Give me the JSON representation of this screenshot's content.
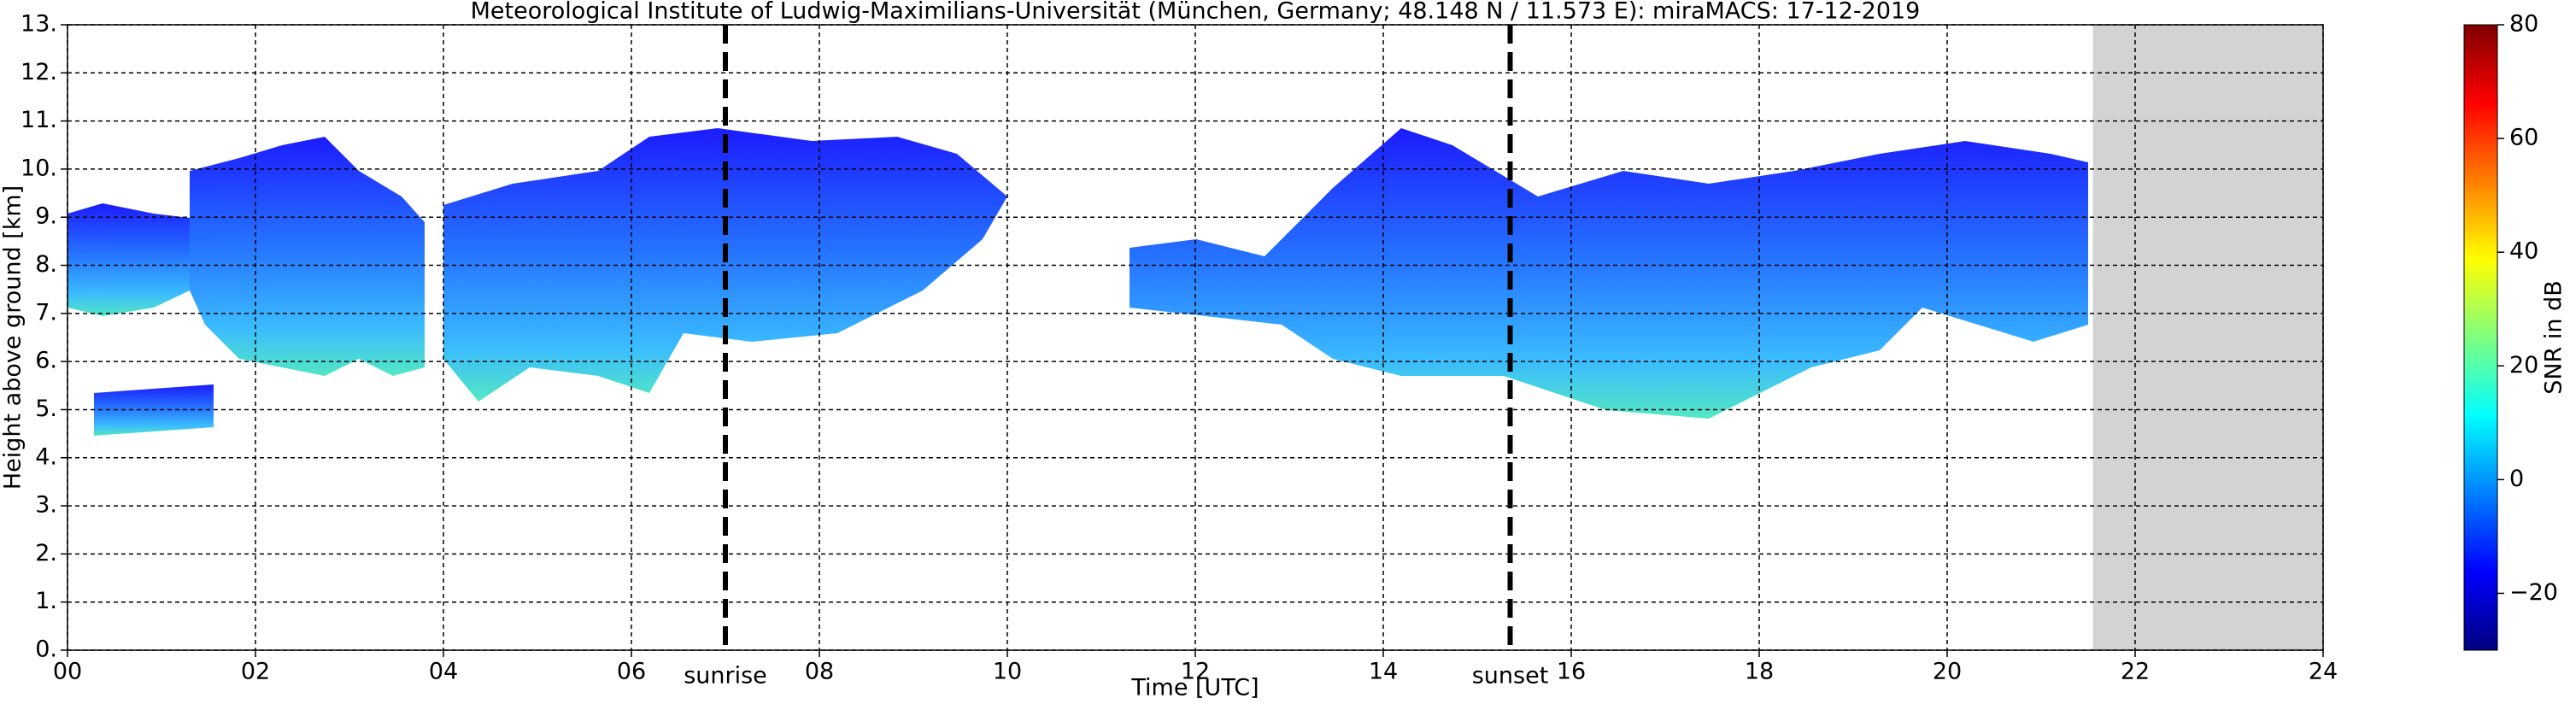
{
  "chart_data": {
    "type": "heatmap",
    "title": "Meteorological Institute of Ludwig-Maximilians-Universität (München, Germany; 48.148 N / 11.573 E):    miraMACS: 17-12-2019",
    "x_label": "Time [UTC]",
    "y_label": "Height above ground [km]",
    "xlim": [
      0,
      24
    ],
    "xticks": [
      {
        "value": 0,
        "label": "00"
      },
      {
        "value": 2,
        "label": "02"
      },
      {
        "value": 4,
        "label": "04"
      },
      {
        "value": 6,
        "label": "06"
      },
      {
        "value": 8,
        "label": "08"
      },
      10,
      12,
      14,
      16,
      18,
      20,
      22,
      24
    ],
    "ylim": [
      0,
      13
    ],
    "yticks": [
      {
        "value": 0,
        "label": "0."
      },
      {
        "value": 1,
        "label": "1."
      },
      {
        "value": 2,
        "label": "2."
      },
      {
        "value": 3,
        "label": "3."
      },
      {
        "value": 4,
        "label": "4."
      },
      {
        "value": 5,
        "label": "5."
      },
      {
        "value": 6,
        "label": "6."
      },
      {
        "value": 7,
        "label": "7."
      },
      {
        "value": 8,
        "label": "8."
      },
      {
        "value": 9,
        "label": "9."
      },
      {
        "value": 10,
        "label": "10."
      },
      {
        "value": 11,
        "label": "11."
      },
      {
        "value": 12,
        "label": "12."
      },
      {
        "value": 13,
        "label": "13."
      }
    ],
    "grid": true,
    "annotations": [
      {
        "label": "sunrise",
        "x": 7.0
      },
      {
        "label": "sunset",
        "x": 15.35
      }
    ],
    "no_data_xlim": [
      21.55,
      24
    ],
    "colorbar": {
      "label": "SNR in dB",
      "lim": [
        -30,
        80
      ],
      "colormap": "jet",
      "ticks": [
        {
          "value": -20,
          "label": "−20"
        },
        0,
        20,
        40,
        60,
        80
      ]
    }
  }
}
